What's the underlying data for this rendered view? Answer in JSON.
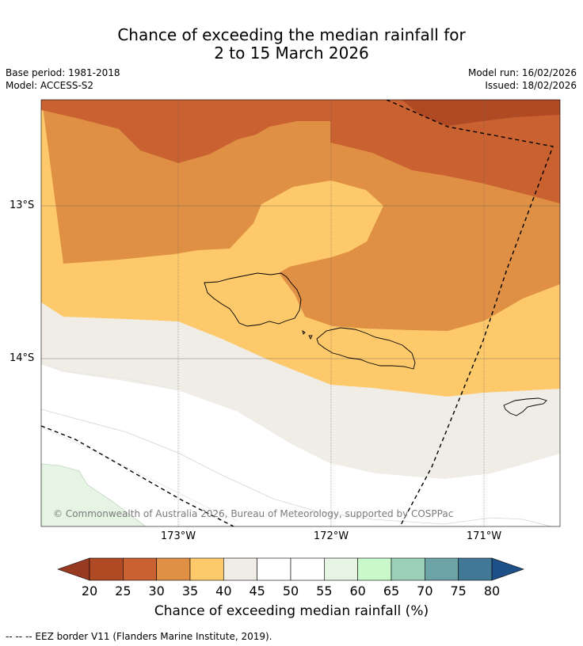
{
  "title": {
    "line1": "Chance of exceeding the median rainfall for",
    "line2": "2 to 15 March 2026"
  },
  "meta_left": {
    "base_period": "Base period: 1981-2018",
    "model": "Model: ACCESS-S2"
  },
  "meta_right": {
    "model_run": "Model run: 16/02/2026",
    "issued": "Issued: 18/02/2026"
  },
  "latitude_labels": [
    "13°S",
    "14°S"
  ],
  "longitude_labels": [
    "173°W",
    "172°W",
    "171°W"
  ],
  "copyright": "© Commonwealth of Australia 2026, Bureau of Meteorology, supported by COSPPac",
  "colorbar": {
    "ticks": [
      "20",
      "25",
      "30",
      "35",
      "40",
      "45",
      "50",
      "55",
      "60",
      "65",
      "70",
      "75",
      "80"
    ],
    "colors": {
      "under": "#983a21",
      "bins": [
        "#b04a25",
        "#c96230",
        "#df9045",
        "#fdc96a",
        "#f0ece6",
        "#ffffff",
        "#ffffff",
        "#e6f4e4",
        "#c9f8cb",
        "#9ad0b7",
        "#6ba3a6",
        "#407895"
      ],
      "over": "#1e4f86"
    },
    "title": "Chance of exceeding median rainfall (%)"
  },
  "footnote": "--  --  -- EEZ border V11 (Flanders Marine Institute, 2019)."
}
